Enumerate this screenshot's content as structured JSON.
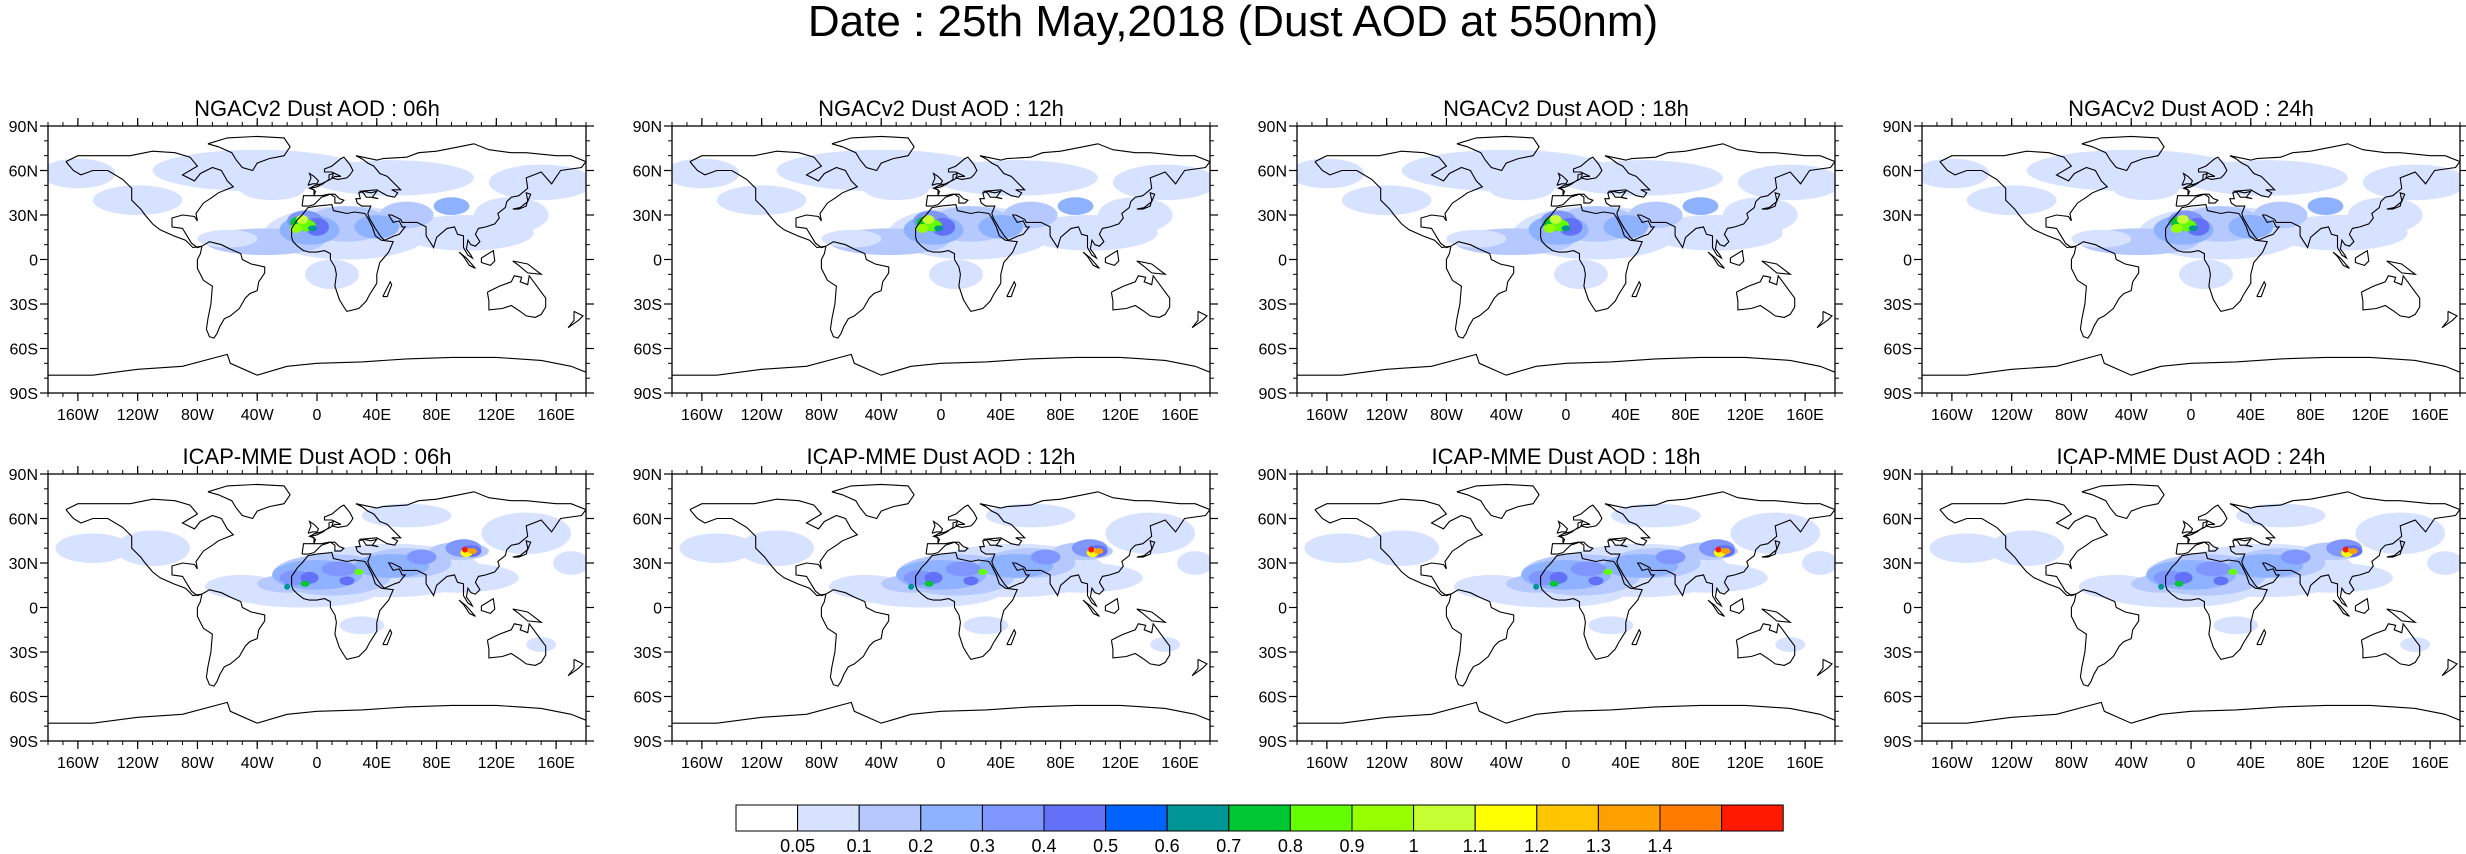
{
  "title": "Date : 25th May,2018 (Dust AOD at 550nm)",
  "lat_ticks": [
    "90N",
    "60N",
    "30N",
    "0",
    "30S",
    "60S",
    "90S"
  ],
  "lon_ticks": [
    "160W",
    "120W",
    "80W",
    "40W",
    "0",
    "40E",
    "80E",
    "120E",
    "160E"
  ],
  "panels": [
    {
      "title": "NGACv2 Dust AOD : 06h",
      "model": "NGACv2",
      "hour": "06h"
    },
    {
      "title": "NGACv2 Dust AOD : 12h",
      "model": "NGACv2",
      "hour": "12h"
    },
    {
      "title": "NGACv2 Dust AOD : 18h",
      "model": "NGACv2",
      "hour": "18h"
    },
    {
      "title": "NGACv2 Dust AOD : 24h",
      "model": "NGACv2",
      "hour": "24h"
    },
    {
      "title": "ICAP-MME Dust AOD : 06h",
      "model": "ICAP-MME",
      "hour": "06h"
    },
    {
      "title": "ICAP-MME Dust AOD : 12h",
      "model": "ICAP-MME",
      "hour": "12h"
    },
    {
      "title": "ICAP-MME Dust AOD : 18h",
      "model": "ICAP-MME",
      "hour": "18h"
    },
    {
      "title": "ICAP-MME Dust AOD : 24h",
      "model": "ICAP-MME",
      "hour": "24h"
    }
  ],
  "colorbar": {
    "labels": [
      "0.05",
      "0.1",
      "0.2",
      "0.3",
      "0.4",
      "0.5",
      "0.6",
      "0.7",
      "0.8",
      "0.9",
      "1",
      "1.1",
      "1.2",
      "1.3",
      "1.4"
    ],
    "colors": [
      "#ffffff",
      "#d6e2ff",
      "#b5c9ff",
      "#8eb2ff",
      "#7f96ff",
      "#6370f8",
      "#0063ff",
      "#009696",
      "#00c633",
      "#63ff00",
      "#96ff00",
      "#c6ff33",
      "#ffff00",
      "#ffc600",
      "#ffa000",
      "#ff7c00",
      "#ff1900"
    ]
  }
}
